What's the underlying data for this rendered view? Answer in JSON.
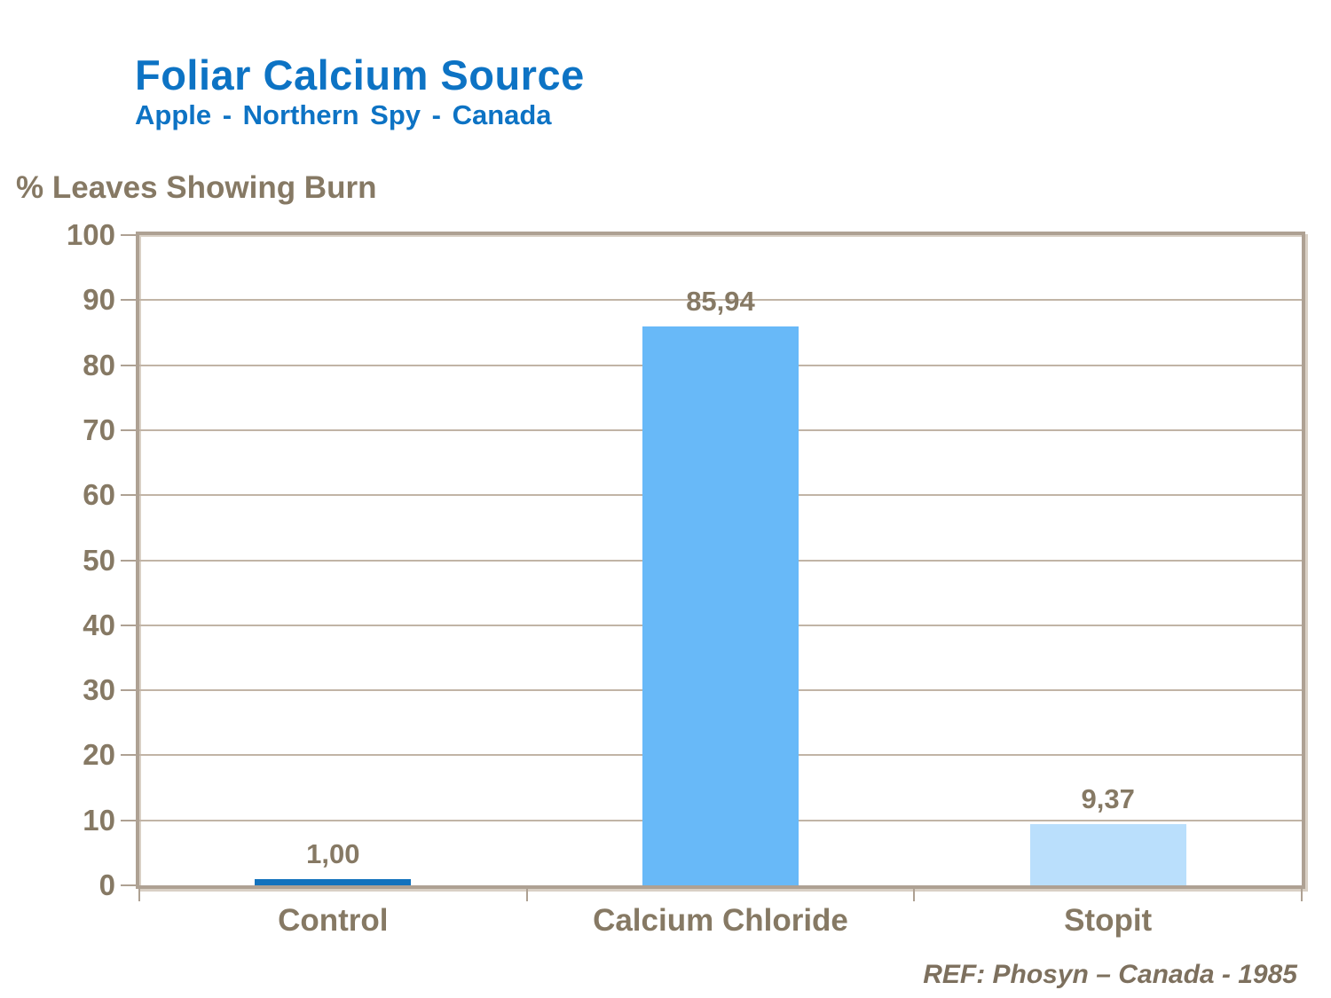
{
  "slide": {
    "title": "Foliar Calcium Source",
    "subtitle": "Apple - Northern Spy - Canada",
    "reference": "REF: Phosyn – Canada - 1985"
  },
  "colors": {
    "title_blue": "#0d73c4",
    "chart_text_taupe": "#867964",
    "gridline": "#c1b4a6",
    "plot_frame": "#aea193",
    "bar_control": "#1272bd",
    "bar_calcium_chloride": "#68b9f8",
    "bar_stopit": "#badffc"
  },
  "chart_data": {
    "type": "bar",
    "title": "Foliar Calcium Source",
    "subtitle": "Apple - Northern Spy - Canada",
    "axis_title": "% Leaves Showing Burn",
    "categories": [
      "Control",
      "Calcium Chloride",
      "Stopit"
    ],
    "values": [
      1.0,
      85.94,
      9.37
    ],
    "value_labels": [
      "1,00",
      "85,94",
      "9,37"
    ],
    "bar_colors": [
      "#1272bd",
      "#68b9f8",
      "#badffc"
    ],
    "xlabel": "",
    "ylabel": "% Leaves Showing Burn",
    "ylim": [
      0,
      100
    ],
    "ytick_interval": 10,
    "yticks": [
      0,
      10,
      20,
      30,
      40,
      50,
      60,
      70,
      80,
      90,
      100
    ],
    "decimal_separator": ",",
    "grid": "horizontal",
    "legend": "none",
    "annotation": "REF: Phosyn – Canada - 1985"
  }
}
